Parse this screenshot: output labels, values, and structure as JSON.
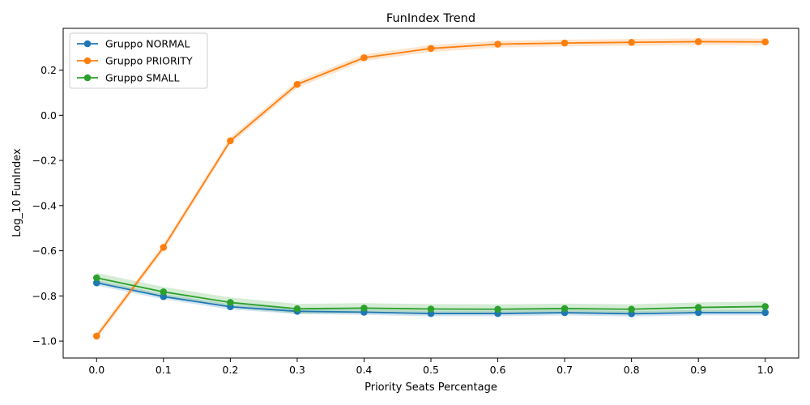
{
  "chart_data": {
    "type": "line",
    "title": "FunIndex Trend",
    "xlabel": "Priority Seats Percentage",
    "ylabel": "Log_10 FunIndex",
    "x": [
      0.0,
      0.1,
      0.2,
      0.3,
      0.4,
      0.5,
      0.6,
      0.7,
      0.8,
      0.9,
      1.0
    ],
    "xlim": [
      -0.05,
      1.05
    ],
    "ylim": [
      -1.075,
      0.385
    ],
    "xticks": [
      "0.0",
      "0.1",
      "0.2",
      "0.3",
      "0.4",
      "0.5",
      "0.6",
      "0.7",
      "0.8",
      "0.9",
      "1.0"
    ],
    "yticks": [
      {
        "value": 0.2,
        "label": "0.2"
      },
      {
        "value": 0.0,
        "label": "0.0"
      },
      {
        "value": -0.2,
        "label": "−0.2"
      },
      {
        "value": -0.4,
        "label": "−0.4"
      },
      {
        "value": -0.6,
        "label": "−0.6"
      },
      {
        "value": -0.8,
        "label": "−0.8"
      },
      {
        "value": -1.0,
        "label": "−1.0"
      }
    ],
    "grid": false,
    "legend_position": "top-left",
    "series": [
      {
        "name": "Gruppo NORMAL",
        "color": "#1f77b4",
        "values": [
          -0.742,
          -0.803,
          -0.848,
          -0.868,
          -0.872,
          -0.878,
          -0.878,
          -0.874,
          -0.879,
          -0.874,
          -0.874
        ],
        "band": 0.012
      },
      {
        "name": "Gruppo PRIORITY",
        "color": "#ff7f0e",
        "values": [
          -0.978,
          -0.585,
          -0.113,
          0.137,
          0.255,
          0.296,
          0.315,
          0.32,
          0.323,
          0.326,
          0.325
        ],
        "band": 0.015
      },
      {
        "name": "Gruppo SMALL",
        "color": "#2ca02c",
        "values": [
          -0.72,
          -0.782,
          -0.829,
          -0.857,
          -0.854,
          -0.858,
          -0.859,
          -0.856,
          -0.859,
          -0.851,
          -0.847
        ],
        "band": 0.022
      }
    ]
  }
}
